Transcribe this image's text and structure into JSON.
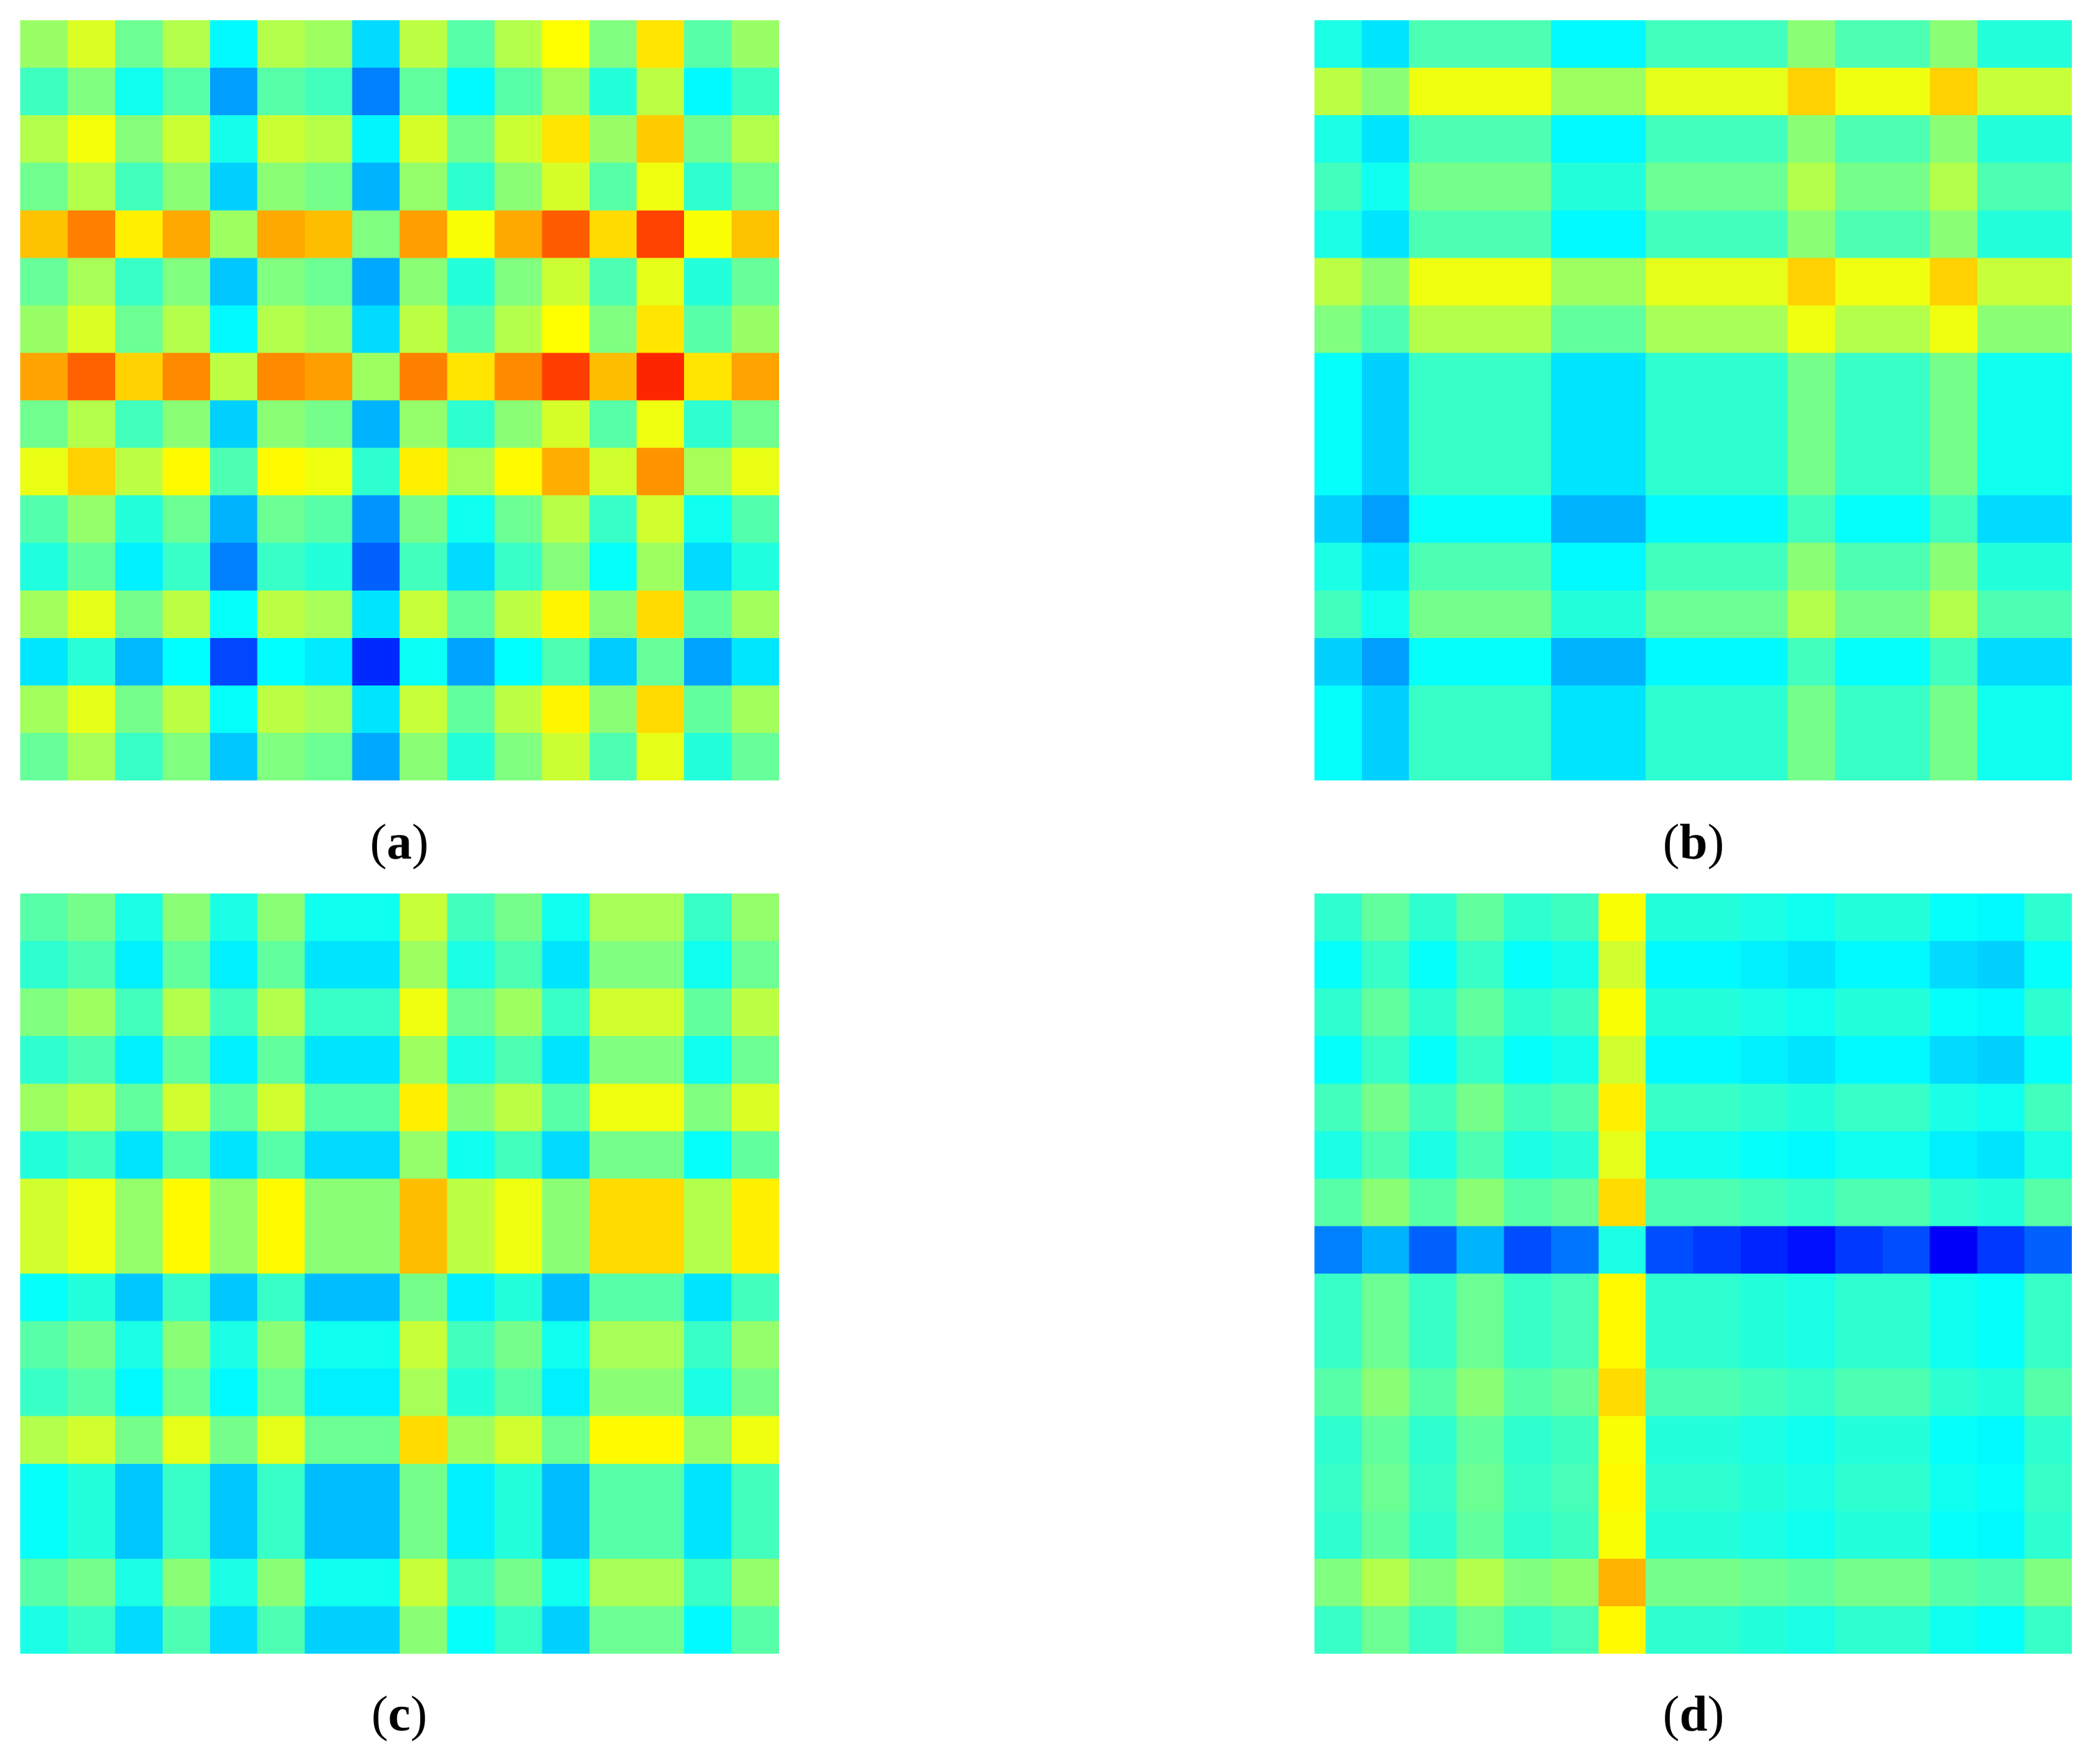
{
  "chart_data": [
    {
      "type": "heatmap",
      "label": "a",
      "rows": 16,
      "cols": 16,
      "colormap": "jet",
      "value_range": [
        0,
        1
      ],
      "row_factors": [
        0.5,
        0.32,
        0.55,
        0.42,
        0.82,
        0.4,
        0.5,
        0.88,
        0.42,
        0.66,
        0.36,
        0.26,
        0.52,
        0.15,
        0.52,
        0.4
      ],
      "col_factors": [
        0.55,
        0.68,
        0.46,
        0.6,
        0.24,
        0.6,
        0.56,
        0.18,
        0.62,
        0.42,
        0.6,
        0.75,
        0.5,
        0.8,
        0.42,
        0.55
      ],
      "annotations": []
    },
    {
      "type": "heatmap",
      "label": "b",
      "rows": 16,
      "cols": 16,
      "colormap": "jet",
      "value_range": [
        0,
        1
      ],
      "row_factors": [
        0.4,
        0.72,
        0.4,
        0.48,
        0.4,
        0.72,
        0.6,
        0.36,
        0.36,
        0.36,
        0.26,
        0.4,
        0.48,
        0.26,
        0.36,
        0.36
      ],
      "col_factors": [
        0.4,
        0.3,
        0.5,
        0.5,
        0.5,
        0.34,
        0.34,
        0.48,
        0.48,
        0.48,
        0.62,
        0.5,
        0.5,
        0.62,
        0.42,
        0.42
      ],
      "annotations": []
    },
    {
      "type": "heatmap",
      "label": "c",
      "rows": 16,
      "cols": 16,
      "colormap": "jet",
      "value_range": [
        0,
        1
      ],
      "row_factors": [
        0.46,
        0.38,
        0.54,
        0.38,
        0.6,
        0.36,
        0.7,
        0.7,
        0.3,
        0.46,
        0.4,
        0.64,
        0.3,
        0.3,
        0.46,
        0.34
      ],
      "col_factors": [
        0.46,
        0.52,
        0.34,
        0.56,
        0.34,
        0.56,
        0.32,
        0.32,
        0.68,
        0.42,
        0.52,
        0.32,
        0.62,
        0.62,
        0.4,
        0.58
      ],
      "annotations": []
    },
    {
      "type": "heatmap",
      "label": "d",
      "rows": 16,
      "cols": 16,
      "colormap": "jet",
      "value_range": [
        0,
        1
      ],
      "row_factors": [
        0.42,
        0.34,
        0.42,
        0.34,
        0.46,
        0.38,
        0.5,
        0.42,
        0.44,
        0.44,
        0.5,
        0.42,
        0.44,
        0.42,
        0.58,
        0.44
      ],
      "col_factors": [
        0.42,
        0.52,
        0.42,
        0.52,
        0.42,
        0.45,
        0.82,
        0.4,
        0.4,
        0.38,
        0.36,
        0.4,
        0.4,
        0.34,
        0.32,
        0.42
      ],
      "annotations": [
        {
          "kind": "row-override",
          "index": 7,
          "values": [
            0.25,
            0.3,
            0.22,
            0.3,
            0.2,
            0.24,
            0.4,
            0.2,
            0.18,
            0.16,
            0.14,
            0.18,
            0.2,
            0.12,
            0.18,
            0.22
          ]
        }
      ]
    }
  ],
  "captions": {
    "a": {
      "open": "(",
      "letter": "a",
      "close": ")"
    },
    "b": {
      "open": "(",
      "letter": "b",
      "close": ")"
    },
    "c": {
      "open": "(",
      "letter": "c",
      "close": ")"
    },
    "d": {
      "open": "(",
      "letter": "d",
      "close": ")"
    }
  }
}
